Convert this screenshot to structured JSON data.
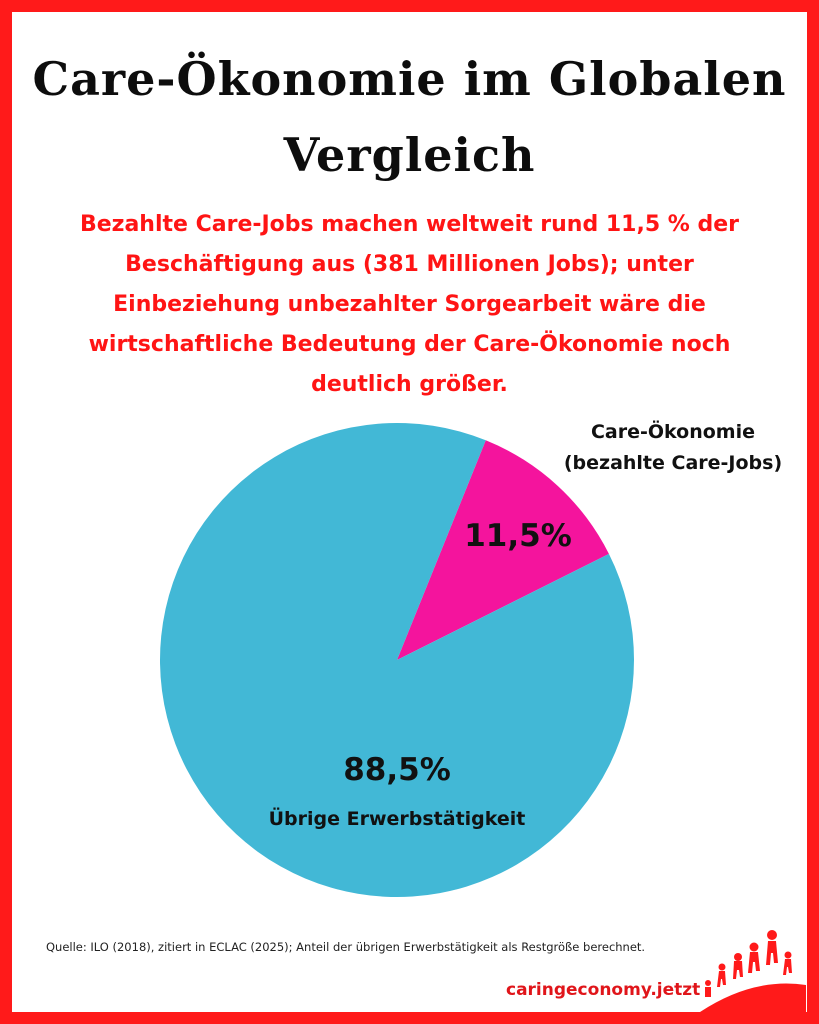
{
  "title_line1": "Care-Ökonomie im Globalen",
  "title_line2": "Vergleich",
  "subtitle": "Bezahlte Care-Jobs machen weltweit rund 11,5 % der Beschäftigung aus (381 Millionen Jobs); unter Einbeziehung unbezahlter Sorgearbeit wäre die wirtschaftliche Bedeutung der Care-Ökonomie noch deutlich größer.",
  "source": "Quelle: ILO (2018), zitiert in ECLAC (2025); Anteil der übrigen Erwerbstätigkeit als Restgröße berechnet.",
  "url": "caringeconomy.jetzt",
  "colors": {
    "frame": "#ff1a1a",
    "care": "#f4149d",
    "rest": "#42b8d6",
    "subtitle": "#ff1414",
    "url": "#e0151a"
  },
  "chart_data": {
    "type": "pie",
    "title": "Care-Ökonomie im Globalen Vergleich",
    "legend_placement": "top-right",
    "slices": [
      {
        "name": "Care-Ökonomie",
        "name_line2": "(bezahlte Care-Jobs)",
        "value": 11.5,
        "label": "11,5%",
        "color": "#f4149d"
      },
      {
        "name": "Übrige Erwerbstätigkeit",
        "value": 88.5,
        "label": "88,5%",
        "color": "#42b8d6"
      }
    ]
  }
}
